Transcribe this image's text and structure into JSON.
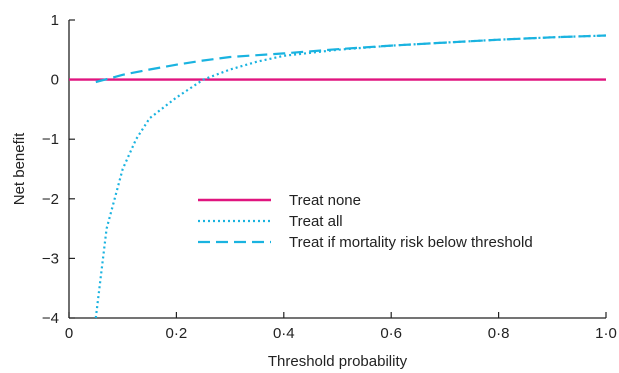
{
  "chart_data": {
    "type": "line",
    "title": "",
    "xlabel": "Threshold probability",
    "ylabel": "Net benefit",
    "xlim": [
      0,
      1.0
    ],
    "ylim": [
      -4,
      1
    ],
    "x_ticks": [
      0,
      0.2,
      0.4,
      0.6,
      0.8,
      1.0
    ],
    "x_tick_labels": [
      "0",
      "0·2",
      "0·4",
      "0·6",
      "0·8",
      "1·0"
    ],
    "y_ticks": [
      -4,
      -3,
      -2,
      -1,
      0,
      1
    ],
    "y_tick_labels": [
      "−4",
      "−3",
      "−2",
      "−1",
      "0",
      "1"
    ],
    "grid": false,
    "legend_position": "center-right",
    "series": [
      {
        "name": "Treat none",
        "style": "solid",
        "color": "#e0147f",
        "x": [
          0,
          1.0
        ],
        "y": [
          0,
          0
        ]
      },
      {
        "name": "Treat all",
        "style": "dotted",
        "color": "#1ab3e0",
        "x": [
          0.05,
          0.07,
          0.1,
          0.125,
          0.15,
          0.2,
          0.25,
          0.3,
          0.35,
          0.4,
          0.5,
          0.6,
          0.7,
          0.8,
          0.9,
          1.0
        ],
        "y": [
          -4,
          -2.5,
          -1.5,
          -1.0,
          -0.65,
          -0.3,
          0.0,
          0.17,
          0.3,
          0.4,
          0.5,
          0.57,
          0.62,
          0.67,
          0.71,
          0.74
        ]
      },
      {
        "name": "Treat if mortality risk below threshold",
        "style": "dashed",
        "color": "#1ab3e0",
        "x": [
          0.05,
          0.08,
          0.1,
          0.15,
          0.2,
          0.25,
          0.3,
          0.35,
          0.4,
          0.5,
          0.6,
          0.7,
          0.8,
          0.9,
          1.0
        ],
        "y": [
          -0.04,
          0.03,
          0.08,
          0.17,
          0.25,
          0.32,
          0.38,
          0.41,
          0.44,
          0.51,
          0.57,
          0.62,
          0.67,
          0.71,
          0.74
        ]
      }
    ]
  }
}
